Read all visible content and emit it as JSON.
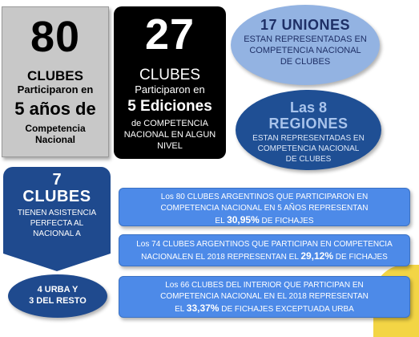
{
  "box80": {
    "number": "80",
    "line1": "CLUBES",
    "line2": "Participaron en",
    "line3": "5 años de",
    "line4a": "Competencia",
    "line4b": "Nacional"
  },
  "box27": {
    "number": "27",
    "line1": "CLUBES",
    "line2": "Participaron en",
    "line3": "5 Ediciones",
    "line4": "de COMPETENCIA NACIONAL EN ALGUN NIVEL"
  },
  "ellipse17": {
    "title": "17 UNIONES",
    "line1": "ESTAN REPRESENTADAS EN",
    "line2": "COMPETENCIA NACIONAL",
    "line3": "DE CLUBES"
  },
  "ellipse8": {
    "title1": "Las 8",
    "title2": "REGIONES",
    "line1": "ESTAN REPRESENTADAS EN",
    "line2": "COMPETENCIA NACIONAL",
    "line3": "DE CLUBES"
  },
  "box7": {
    "number": "7",
    "title": "CLUBES",
    "line1": "TIENEN ASISTENCIA",
    "line2": "PERFECTA AL",
    "line3": "NACIONAL A"
  },
  "ellipseUrba": {
    "line1": "4 URBA Y",
    "line2": "3 DEL RESTO"
  },
  "bar1": {
    "line1": "Los 80 CLUBES ARGENTINOS QUE PARTICIPARON EN",
    "line2": "COMPETENCIA  NACIONAL EN 5 AÑOS REPRESENTAN",
    "line3_pre": "EL ",
    "pct": "30,95%",
    "line3_post": " DE FICHAJES"
  },
  "bar2": {
    "line1": "Los 74 CLUBES ARGENTINOS QUE PARTICIPAN EN  COMPETENCIA",
    "line2_pre": "NACIONALEN EL 2018  REPRESENTAN EL ",
    "pct": "29,12%",
    "line2_post": " DE FICHAJES"
  },
  "bar3": {
    "line1": "Los 66 CLUBES DEL INTERIOR QUE PARTICIPAN EN",
    "line2": "COMPETENCIA  NACIONAL EN EL 2018 REPRESENTAN",
    "line3_pre": "EL ",
    "pct": "33,37%",
    "line3_post": " DE FICHAJES EXCEPTUADA URBA"
  },
  "colors": {
    "gray_box": "#c8c8c8",
    "black_box": "#000000",
    "light_blue": "#93b3e2",
    "dark_blue": "#1f4a8e",
    "bar_blue": "#4d8ae8",
    "accent_yellow": "#f3d545"
  }
}
